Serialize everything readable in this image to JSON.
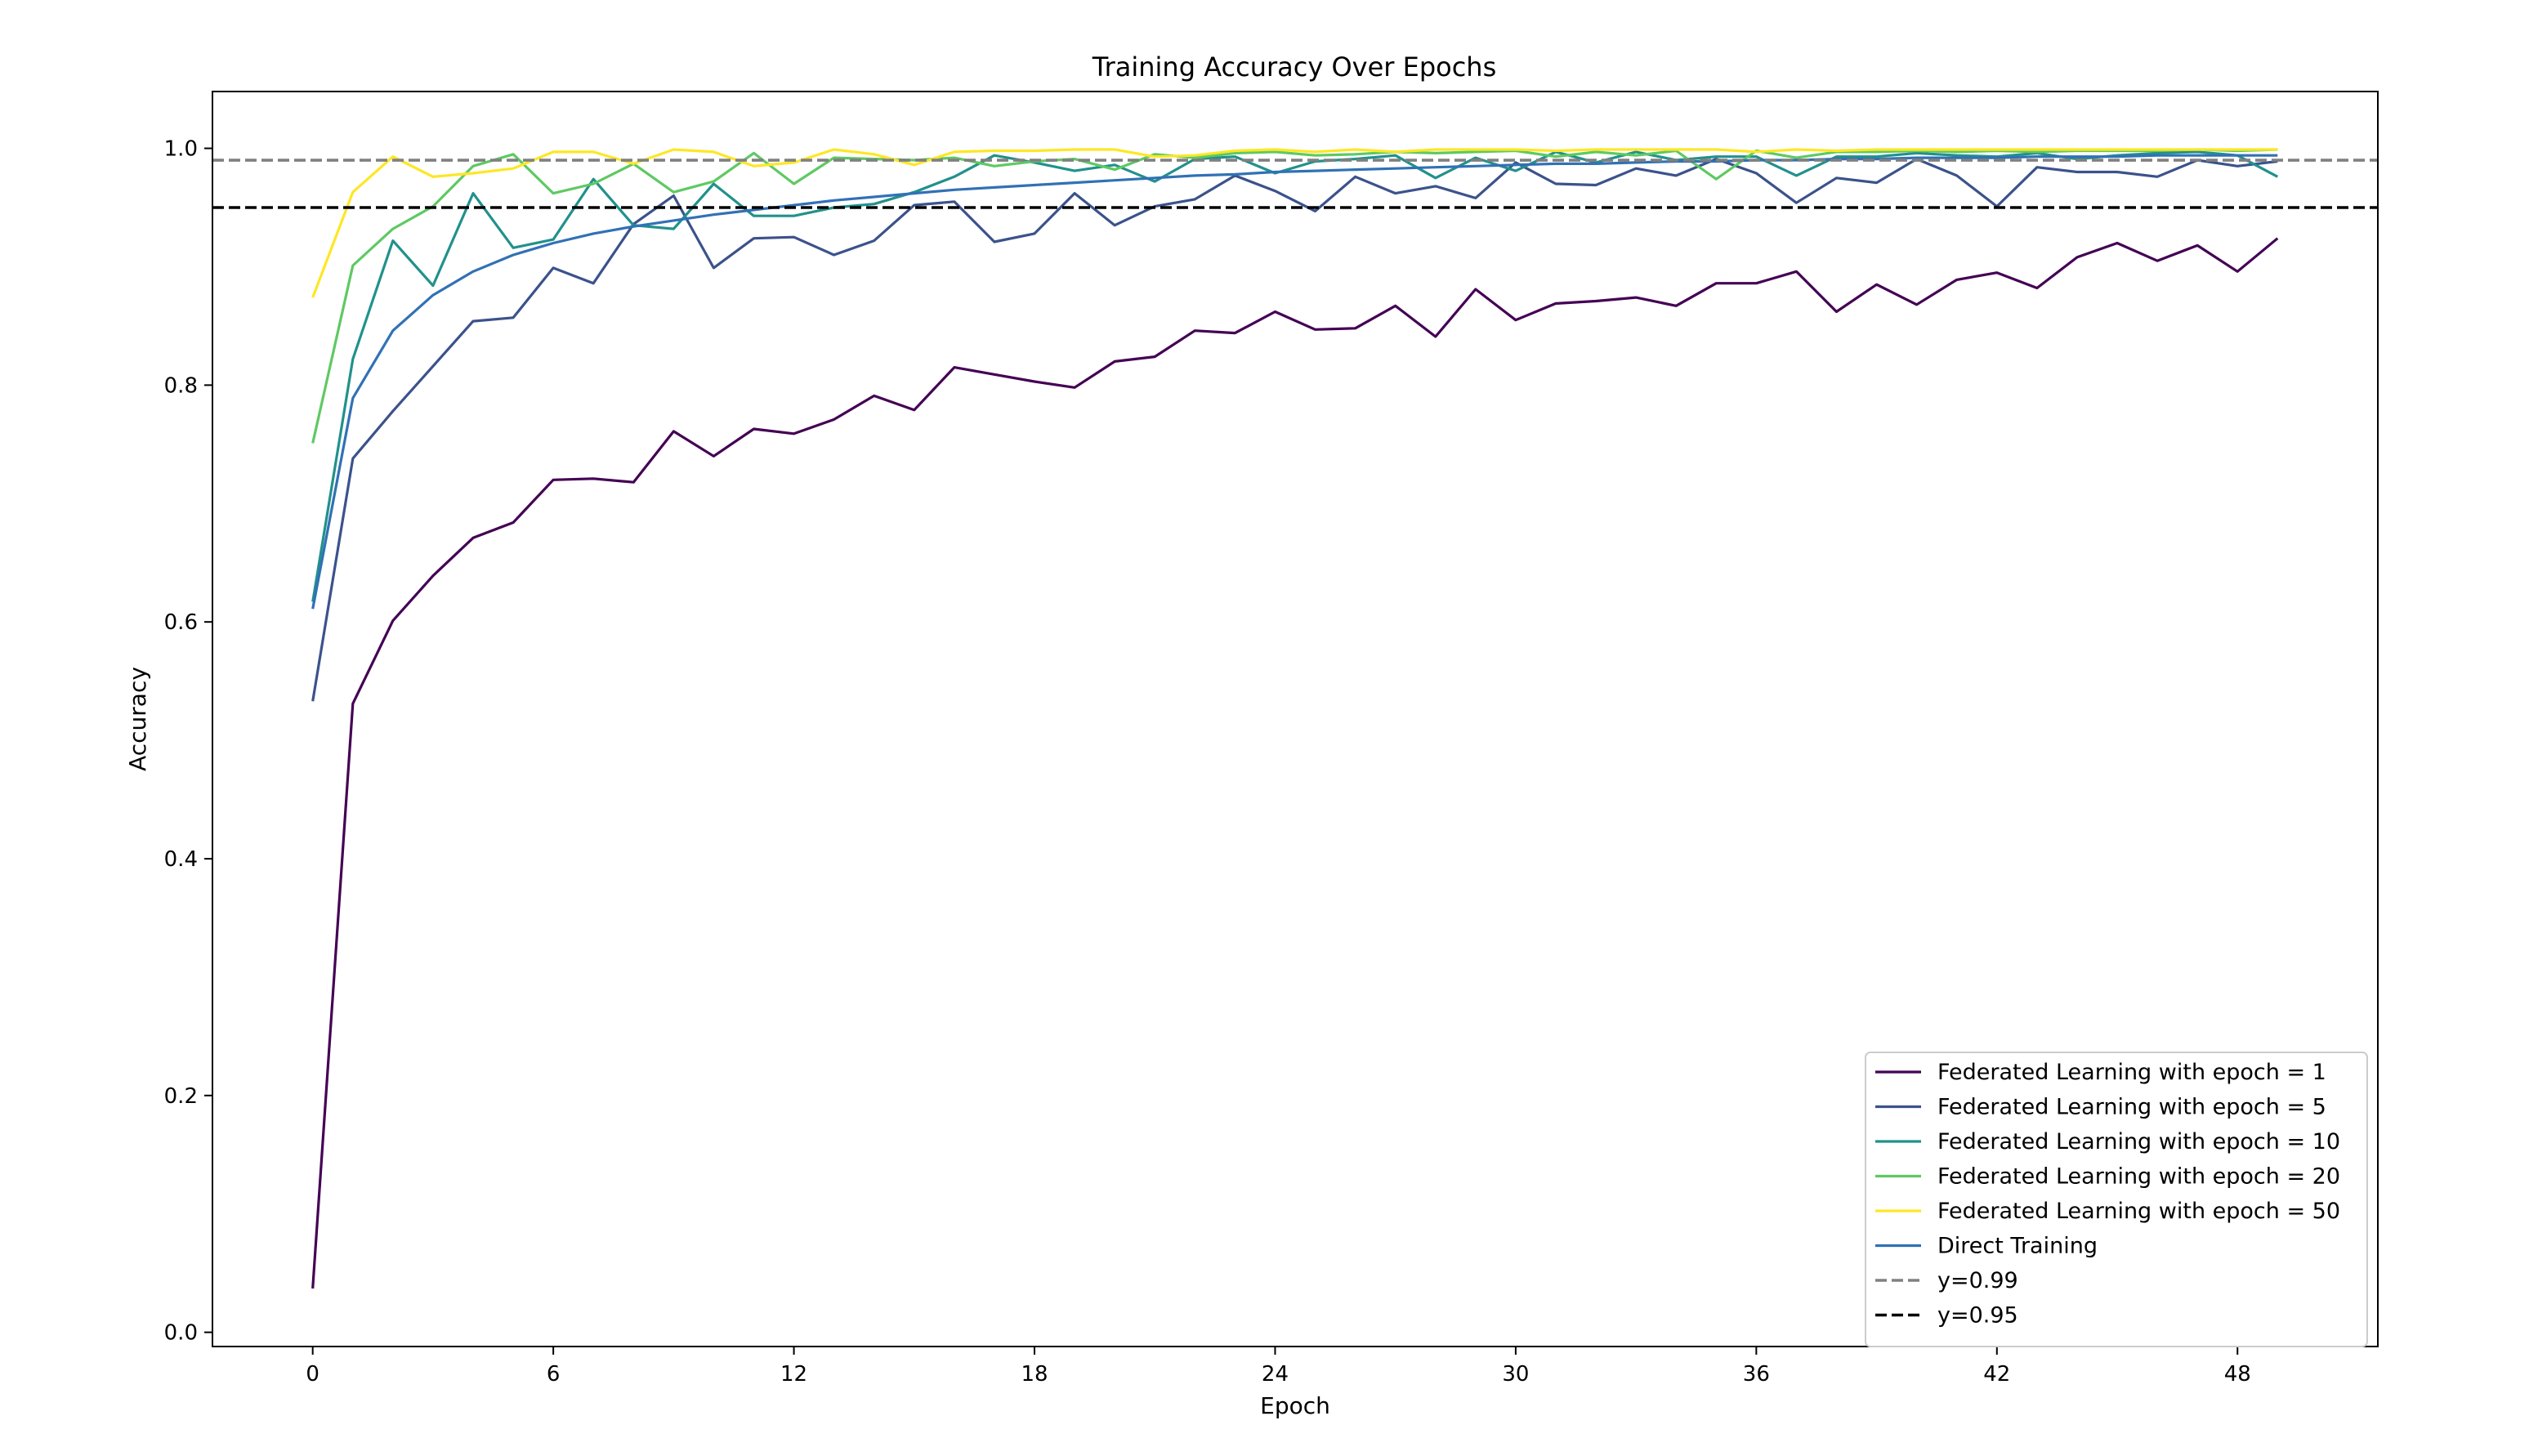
{
  "chart_data": {
    "type": "line",
    "title": "Training Accuracy Over Epochs",
    "xlabel": "Epoch",
    "ylabel": "Accuracy",
    "xlim": [
      -2.5,
      51.5
    ],
    "ylim": [
      -0.012,
      1.048
    ],
    "xticks": [
      0,
      6,
      12,
      18,
      24,
      30,
      36,
      42,
      48
    ],
    "yticks": [
      0.0,
      0.2,
      0.4,
      0.6,
      0.8,
      1.0
    ],
    "ytick_labels": [
      "0.0",
      "0.2",
      "0.4",
      "0.6",
      "0.8",
      "1.0"
    ],
    "grid": false,
    "legend_position": "lower-right",
    "series": [
      {
        "name": "Federated Learning with epoch = 1",
        "color": "#440154",
        "values": [
          0.037,
          0.531,
          0.601,
          0.639,
          0.671,
          0.684,
          0.72,
          0.721,
          0.718,
          0.761,
          0.74,
          0.763,
          0.759,
          0.771,
          0.791,
          0.779,
          0.815,
          0.809,
          0.803,
          0.798,
          0.82,
          0.824,
          0.846,
          0.844,
          0.862,
          0.847,
          0.848,
          0.867,
          0.841,
          0.881,
          0.855,
          0.869,
          0.871,
          0.874,
          0.867,
          0.886,
          0.886,
          0.896,
          0.862,
          0.885,
          0.868,
          0.889,
          0.895,
          0.882,
          0.908,
          0.92,
          0.905,
          0.918,
          0.896,
          0.924
        ]
      },
      {
        "name": "Federated Learning with epoch = 5",
        "color": "#3b528b",
        "values": [
          0.533,
          0.738,
          0.778,
          0.816,
          0.854,
          0.857,
          0.899,
          0.886,
          0.936,
          0.96,
          0.899,
          0.924,
          0.925,
          0.91,
          0.922,
          0.952,
          0.955,
          0.921,
          0.928,
          0.962,
          0.935,
          0.951,
          0.957,
          0.977,
          0.964,
          0.947,
          0.976,
          0.962,
          0.968,
          0.958,
          0.988,
          0.97,
          0.969,
          0.983,
          0.977,
          0.991,
          0.979,
          0.954,
          0.975,
          0.971,
          0.991,
          0.977,
          0.951,
          0.984,
          0.98,
          0.98,
          0.976,
          0.99,
          0.985,
          0.989
        ]
      },
      {
        "name": "Federated Learning with epoch = 10",
        "color": "#21918c",
        "values": [
          0.617,
          0.822,
          0.922,
          0.884,
          0.962,
          0.916,
          0.923,
          0.974,
          0.935,
          0.932,
          0.97,
          0.943,
          0.943,
          0.95,
          0.953,
          0.963,
          0.976,
          0.994,
          0.988,
          0.981,
          0.986,
          0.972,
          0.991,
          0.993,
          0.979,
          0.989,
          0.991,
          0.994,
          0.975,
          0.992,
          0.981,
          0.997,
          0.988,
          0.997,
          0.99,
          0.993,
          0.993,
          0.977,
          0.993,
          0.993,
          0.996,
          0.994,
          0.993,
          0.996,
          0.991,
          0.994,
          0.996,
          0.997,
          0.994,
          0.976
        ]
      },
      {
        "name": "Federated Learning with epoch = 20",
        "color": "#5ec962",
        "values": [
          0.751,
          0.901,
          0.932,
          0.951,
          0.985,
          0.995,
          0.962,
          0.97,
          0.987,
          0.963,
          0.972,
          0.996,
          0.97,
          0.992,
          0.991,
          0.99,
          0.992,
          0.985,
          0.989,
          0.991,
          0.982,
          0.995,
          0.992,
          0.996,
          0.997,
          0.994,
          0.995,
          0.997,
          0.996,
          0.997,
          0.998,
          0.993,
          0.997,
          0.994,
          0.998,
          0.974,
          0.998,
          0.992,
          0.997,
          0.997,
          0.998,
          0.997,
          0.998,
          0.997,
          0.998,
          0.998,
          0.998,
          0.999,
          0.998,
          0.999
        ]
      },
      {
        "name": "Federated Learning with epoch = 50",
        "color": "#fde725",
        "values": [
          0.874,
          0.963,
          0.993,
          0.976,
          0.979,
          0.983,
          0.997,
          0.997,
          0.987,
          0.999,
          0.997,
          0.985,
          0.988,
          0.999,
          0.995,
          0.986,
          0.997,
          0.998,
          0.998,
          0.999,
          0.999,
          0.993,
          0.994,
          0.998,
          0.999,
          0.997,
          0.999,
          0.997,
          0.999,
          0.999,
          0.999,
          0.998,
          0.999,
          0.999,
          0.999,
          0.999,
          0.997,
          0.999,
          0.998,
          0.999,
          0.999,
          0.999,
          0.999,
          0.999,
          0.999,
          0.999,
          0.999,
          0.999,
          0.999,
          0.999
        ]
      },
      {
        "name": "Direct Training",
        "color": "#3171b5",
        "values": [
          0.611,
          0.789,
          0.846,
          0.876,
          0.896,
          0.91,
          0.92,
          0.928,
          0.934,
          0.939,
          0.944,
          0.948,
          0.952,
          0.956,
          0.959,
          0.962,
          0.965,
          0.967,
          0.969,
          0.971,
          0.973,
          0.975,
          0.977,
          0.978,
          0.98,
          0.981,
          0.982,
          0.983,
          0.984,
          0.985,
          0.986,
          0.987,
          0.987,
          0.988,
          0.989,
          0.989,
          0.99,
          0.99,
          0.991,
          0.991,
          0.992,
          0.992,
          0.992,
          0.993,
          0.993,
          0.993,
          0.994,
          0.994,
          0.994,
          0.994
        ]
      }
    ],
    "reference_lines": [
      {
        "name": "y=0.99",
        "y": 0.99,
        "color": "#808080",
        "style": "dashed"
      },
      {
        "name": "y=0.95",
        "y": 0.95,
        "color": "#000000",
        "style": "dashed"
      }
    ]
  }
}
